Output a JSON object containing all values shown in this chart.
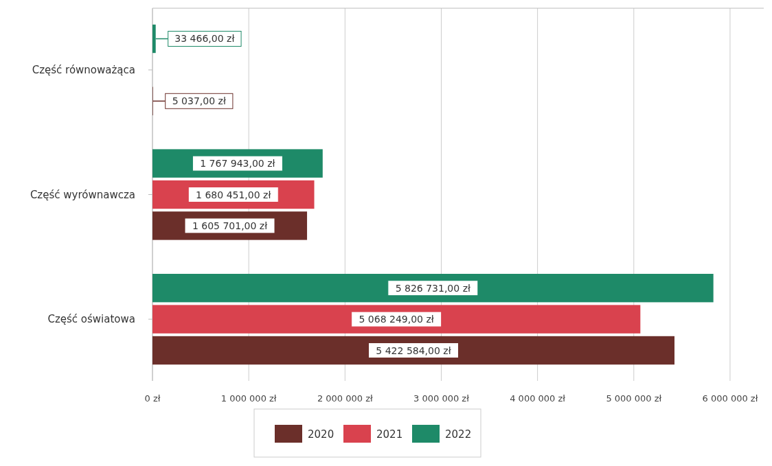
{
  "chart_data": {
    "type": "bar",
    "orientation": "horizontal",
    "categories": [
      "Część równoważąca",
      "Część wyrównawcza",
      "Część oświatowa"
    ],
    "series": [
      {
        "name": "2020",
        "color": "#6b2f2a",
        "values": [
          5037,
          1605701,
          5422584
        ],
        "value_labels": [
          "5 037,00 zł",
          "1 605 701,00 zł",
          "5 422 584,00 zł"
        ]
      },
      {
        "name": "2021",
        "color": "#d9424e",
        "values": [
          null,
          1680451,
          5068249
        ],
        "value_labels": [
          null,
          "1 680 451,00 zł",
          "5 068 249,00 zł"
        ]
      },
      {
        "name": "2022",
        "color": "#1e8a68",
        "values": [
          33466,
          1767943,
          5826731
        ],
        "value_labels": [
          "33 466,00 zł",
          "1 767 943,00 zł",
          "5 826 731,00 zł"
        ]
      }
    ],
    "xlim": [
      0,
      6350000
    ],
    "xticks": [
      {
        "value": 0,
        "label": "0 zł"
      },
      {
        "value": 1000000,
        "label": "1 000 000 zł"
      },
      {
        "value": 2000000,
        "label": "2 000 000 zł"
      },
      {
        "value": 3000000,
        "label": "3 000 000 zł"
      },
      {
        "value": 4000000,
        "label": "4 000 000 zł"
      },
      {
        "value": 5000000,
        "label": "5 000 000 zł"
      },
      {
        "value": 6000000,
        "label": "6 000 000 zł"
      }
    ],
    "grid": "x",
    "legend": "bottom"
  }
}
